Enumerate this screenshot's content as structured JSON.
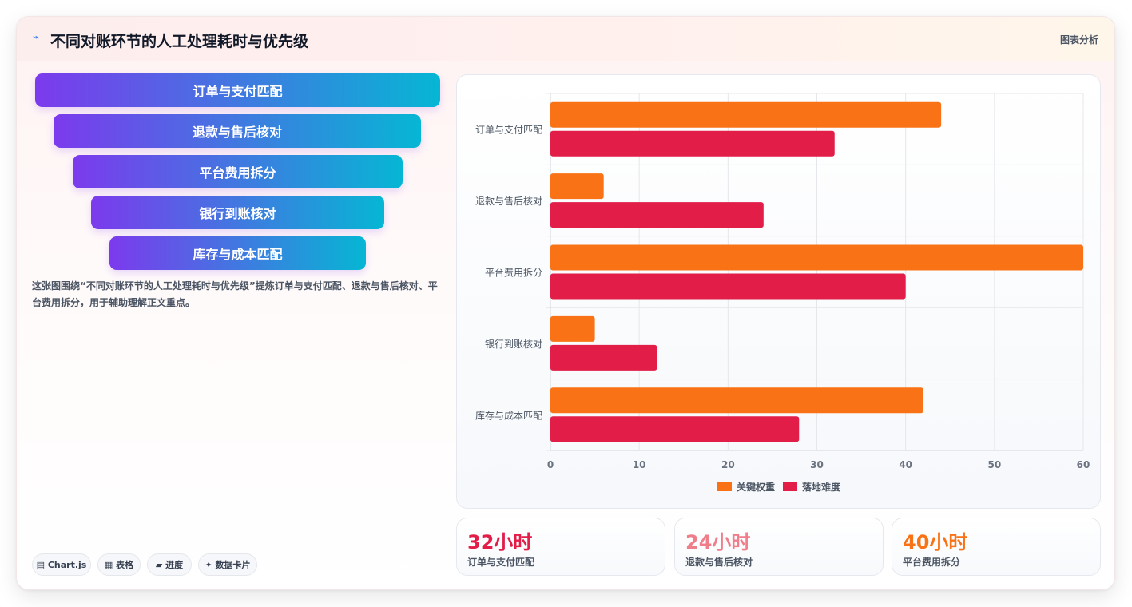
{
  "header": {
    "title": "不同对账环节的人工处理耗时与优先级",
    "tag": "图表分析"
  },
  "funnel": [
    "订单与支付匹配",
    "退款与售后核对",
    "平台费用拆分",
    "银行到账核对",
    "库存与成本匹配"
  ],
  "description": "这张图围绕“不同对账环节的人工处理耗时与优先级”提炼订单与支付匹配、退款与售后核对、平台费用拆分，用于辅助理解正文重点。",
  "chips": [
    "▤ Chart.js",
    "▦ 表格",
    "▰ 进度",
    "✦ 数据卡片"
  ],
  "stats": [
    {
      "value": "32小时",
      "label": "订单与支付匹配",
      "color": "#e11d48"
    },
    {
      "value": "24小时",
      "label": "退款与售后核对",
      "color": "#f07d8a"
    },
    {
      "value": "40小时",
      "label": "平台费用拆分",
      "color": "#f97316"
    }
  ],
  "chart_data": {
    "type": "bar",
    "orientation": "horizontal",
    "categories": [
      "订单与支付匹配",
      "退款与售后核对",
      "平台费用拆分",
      "银行到账核对",
      "库存与成本匹配"
    ],
    "series": [
      {
        "name": "关键权重",
        "color": "#f97316",
        "values": [
          44,
          6,
          60,
          5,
          42
        ]
      },
      {
        "name": "落地难度",
        "color": "#e11d48",
        "values": [
          32,
          24,
          40,
          12,
          28
        ]
      }
    ],
    "xlim": [
      0,
      60
    ],
    "xticks": [
      0,
      10,
      20,
      30,
      40,
      50,
      60
    ],
    "grid": true,
    "legend": "bottom"
  }
}
